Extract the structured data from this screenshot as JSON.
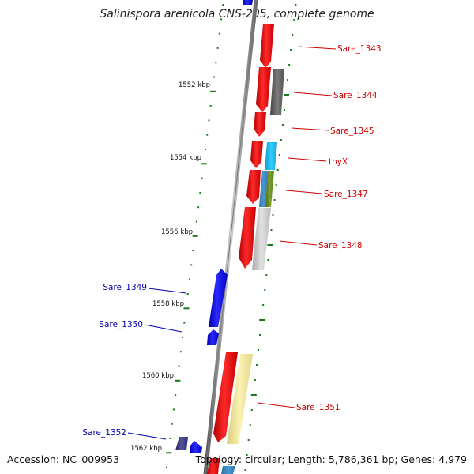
{
  "title": "Salinispora arenicola CNS-205, complete genome",
  "accession": "Accession: NC_009953",
  "topology": "Topology: circular; Length: 5,786,361 bp; Genes: 4,979",
  "colors": {
    "forward_gene": "#ff0000",
    "reverse_gene": "#0000ee",
    "label_forward": "#cc0000",
    "label_reverse": "#0000aa",
    "tick": "#1a7a1a",
    "backbone": "#888888",
    "gray_feature": "#666666",
    "cyan_feature": "#22bbee",
    "olive_feature": "#6b8e23",
    "light_gray_feature": "#cccccc",
    "pale_yellow_feature": "#f3e9a0",
    "navy_feature": "#333377"
  },
  "scale_labels": [
    "1552 kbp",
    "1554 kbp",
    "1556 kbp",
    "1558 kbp",
    "1560 kbp",
    "1562 kbp"
  ],
  "gene_labels": [
    {
      "text": "Sare_1343",
      "strand": "forward"
    },
    {
      "text": "Sare_1344",
      "strand": "forward"
    },
    {
      "text": "Sare_1345",
      "strand": "forward"
    },
    {
      "text": "thyX",
      "strand": "forward"
    },
    {
      "text": "Sare_1347",
      "strand": "forward"
    },
    {
      "text": "Sare_1348",
      "strand": "forward"
    },
    {
      "text": "Sare_1349",
      "strand": "reverse"
    },
    {
      "text": "Sare_1350",
      "strand": "reverse"
    },
    {
      "text": "Sare_1351",
      "strand": "forward"
    },
    {
      "text": "Sare_1352",
      "strand": "reverse"
    }
  ]
}
